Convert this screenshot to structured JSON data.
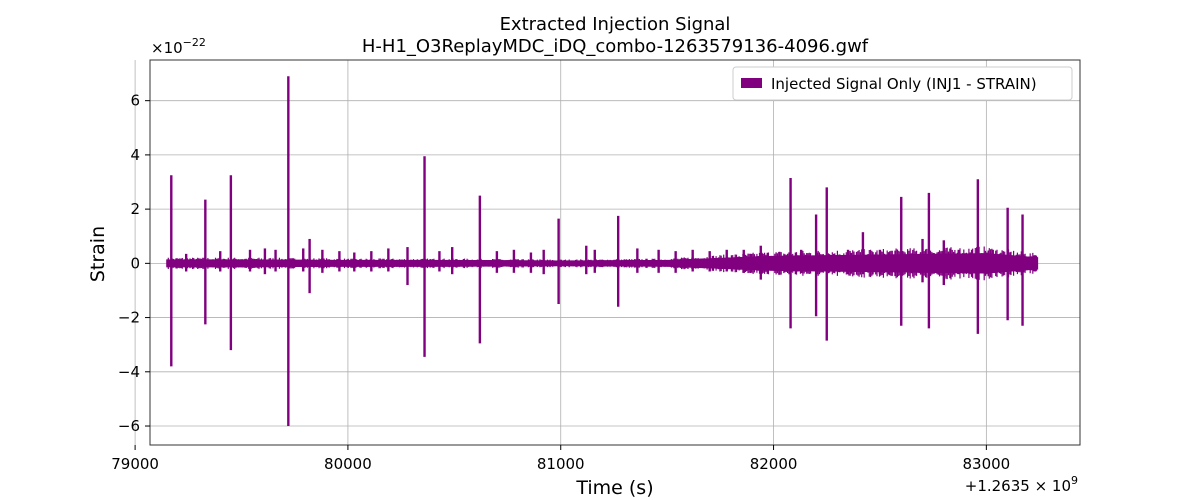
{
  "chart_data": {
    "type": "line",
    "title": "Extracted Injection Signal",
    "subtitle": "H-H1_O3ReplayMDC_iDQ_combo-1263579136-4096.gwf",
    "xlabel": "Time (s)",
    "ylabel": "Strain",
    "x_offset_label": "+1.2635 × 10",
    "x_offset_exponent": "9",
    "y_multiplier_label": "×10",
    "y_multiplier_exponent": "−22",
    "xlim": [
      79070,
      83440
    ],
    "ylim": [
      -6.7,
      7.5
    ],
    "x_ticks": [
      79000,
      80000,
      81000,
      82000,
      83000
    ],
    "x_tick_labels": [
      "79000",
      "80000",
      "81000",
      "82000",
      "83000"
    ],
    "y_ticks": [
      -6,
      -4,
      -2,
      0,
      2,
      4,
      6
    ],
    "y_tick_labels": [
      "−6",
      "−4",
      "−2",
      "0",
      "2",
      "4",
      "6"
    ],
    "grid": true,
    "legend_position": "top-right",
    "series": [
      {
        "name": "Injected Signal Only (INJ1 - STRAIN)",
        "color": "#800080",
        "x_range": [
          79150,
          83240
        ],
        "baseline_envelope": [
          [
            79150,
            0.12
          ],
          [
            79500,
            0.12
          ],
          [
            80000,
            0.1
          ],
          [
            80500,
            0.1
          ],
          [
            81000,
            0.08
          ],
          [
            81500,
            0.1
          ],
          [
            82000,
            0.25
          ],
          [
            82500,
            0.3
          ],
          [
            83000,
            0.35
          ],
          [
            83240,
            0.2
          ]
        ],
        "spikes": [
          [
            79170,
            3.25,
            -3.8
          ],
          [
            79240,
            0.35,
            -0.3
          ],
          [
            79330,
            2.35,
            -2.25
          ],
          [
            79400,
            0.45,
            -0.3
          ],
          [
            79450,
            3.25,
            -3.2
          ],
          [
            79540,
            0.5,
            -0.3
          ],
          [
            79610,
            0.55,
            -0.4
          ],
          [
            79660,
            0.5,
            -0.3
          ],
          [
            79720,
            6.9,
            -6.0
          ],
          [
            79790,
            0.55,
            -0.3
          ],
          [
            79820,
            0.9,
            -1.1
          ],
          [
            79880,
            0.5,
            -0.35
          ],
          [
            79960,
            0.45,
            -0.3
          ],
          [
            80030,
            0.4,
            -0.3
          ],
          [
            80110,
            0.45,
            -0.3
          ],
          [
            80190,
            0.55,
            -0.3
          ],
          [
            80280,
            0.6,
            -0.8
          ],
          [
            80360,
            3.95,
            -3.45
          ],
          [
            80430,
            0.45,
            -0.3
          ],
          [
            80490,
            0.6,
            -0.4
          ],
          [
            80620,
            2.5,
            -2.95
          ],
          [
            80700,
            0.45,
            -0.35
          ],
          [
            80780,
            0.5,
            -0.35
          ],
          [
            80860,
            0.4,
            -0.35
          ],
          [
            80920,
            0.5,
            -0.4
          ],
          [
            80990,
            1.65,
            -1.5
          ],
          [
            81120,
            0.65,
            -0.4
          ],
          [
            81160,
            0.5,
            -0.35
          ],
          [
            81270,
            1.75,
            -1.6
          ],
          [
            81360,
            0.55,
            -0.35
          ],
          [
            81460,
            0.5,
            -0.35
          ],
          [
            81540,
            0.45,
            -0.35
          ],
          [
            81620,
            0.5,
            -0.3
          ],
          [
            81700,
            0.45,
            -0.3
          ],
          [
            81780,
            0.5,
            -0.3
          ],
          [
            81860,
            0.5,
            -0.35
          ],
          [
            81940,
            0.65,
            -0.6
          ],
          [
            82080,
            3.15,
            -2.4
          ],
          [
            82130,
            0.5,
            -0.35
          ],
          [
            82200,
            1.8,
            -1.95
          ],
          [
            82250,
            2.8,
            -2.85
          ],
          [
            82350,
            0.5,
            -0.4
          ],
          [
            82420,
            1.15,
            -0.4
          ],
          [
            82500,
            0.5,
            -0.4
          ],
          [
            82600,
            2.45,
            -2.3
          ],
          [
            82700,
            0.9,
            -0.7
          ],
          [
            82730,
            2.6,
            -2.4
          ],
          [
            82800,
            0.85,
            -0.8
          ],
          [
            82870,
            0.5,
            -0.4
          ],
          [
            82960,
            3.1,
            -2.6
          ],
          [
            83030,
            0.5,
            -0.3
          ],
          [
            83100,
            2.05,
            -2.1
          ],
          [
            83170,
            1.8,
            -2.3
          ],
          [
            83230,
            0.3,
            -0.3
          ]
        ]
      }
    ]
  }
}
